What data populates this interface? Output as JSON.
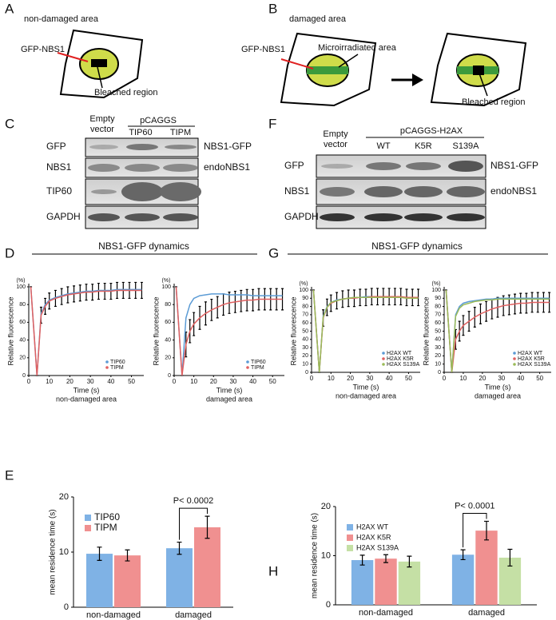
{
  "panels": {
    "A": {
      "label": "A",
      "title": "non-damaged area",
      "gfp": "GFP-NBS1",
      "bleached": "Bleached region"
    },
    "B": {
      "label": "B",
      "title": "damaged area",
      "gfp": "GFP-NBS1",
      "micro": "Microirradiated area",
      "bleached": "Bleached region"
    },
    "C": {
      "label": "C",
      "empty": [
        "Empty",
        "vector"
      ],
      "construct": "pCAGGS",
      "lanes": [
        "TIP60",
        "TIPM"
      ],
      "rows": [
        "GFP",
        "NBS1",
        "TIP60",
        "GAPDH"
      ],
      "right": [
        "NBS1-GFP",
        "endoNBS1"
      ]
    },
    "F": {
      "label": "F",
      "empty": [
        "Empty",
        "vector"
      ],
      "construct": "pCAGGS-H2AX",
      "lanes": [
        "WT",
        "K5R",
        "S139A"
      ],
      "rows": [
        "GFP",
        "NBS1",
        "GAPDH"
      ],
      "right": [
        "NBS1-GFP",
        "endoNBS1"
      ]
    },
    "D": {
      "label": "D",
      "title": "NBS1-GFP dynamics"
    },
    "G": {
      "label": "G",
      "title": "NBS1-GFP dynamics"
    },
    "E": {
      "label": "E"
    },
    "H": {
      "label": "H"
    }
  },
  "chart_data": [
    {
      "type": "line",
      "xlabel": "Time (s)",
      "ylabel": "Relative fluorescence",
      "y_unit": "(%)",
      "subtitle": "non-damaged area",
      "x": [
        1,
        4,
        6,
        8,
        10,
        13,
        16,
        19,
        22,
        25,
        28,
        31,
        34,
        37,
        40,
        43,
        46,
        49,
        52,
        55
      ],
      "series": [
        {
          "name": "TIP60",
          "color": "#5b9bd5",
          "values": [
            100,
            0,
            70,
            80,
            85,
            88,
            90,
            92,
            93,
            94,
            95,
            95,
            96,
            96,
            96,
            97,
            97,
            97,
            97,
            97
          ]
        },
        {
          "name": "TIPM",
          "color": "#e06060",
          "values": [
            100,
            0,
            68,
            78,
            84,
            87,
            89,
            91,
            92,
            93,
            94,
            94,
            95,
            95,
            95,
            96,
            96,
            96,
            96,
            96
          ],
          "errors": [
            0,
            0,
            9,
            9,
            9,
            9,
            9,
            9,
            9,
            9,
            9,
            9,
            9,
            9,
            9,
            9,
            9,
            9,
            9,
            9
          ]
        }
      ],
      "xlim": [
        0,
        56
      ],
      "ylim": [
        0,
        100
      ],
      "xticks": [
        0,
        10,
        20,
        30,
        40,
        50
      ],
      "yticks": [
        0,
        20,
        40,
        60,
        80,
        100
      ],
      "grid": false,
      "legend": "lower right"
    },
    {
      "type": "line",
      "xlabel": "Time (s)",
      "ylabel": "Relative fluorescence",
      "y_unit": "(%)",
      "subtitle": "damaged area",
      "x": [
        1,
        4,
        6,
        8,
        10,
        13,
        16,
        19,
        22,
        25,
        28,
        31,
        34,
        37,
        40,
        43,
        46,
        49,
        52,
        55
      ],
      "series": [
        {
          "name": "TIP60",
          "color": "#5b9bd5",
          "values": [
            100,
            0,
            65,
            80,
            87,
            90,
            91,
            92,
            92,
            92,
            91,
            91,
            91,
            91,
            90,
            90,
            90,
            90,
            90,
            90
          ]
        },
        {
          "name": "TIPM",
          "color": "#e06060",
          "values": [
            100,
            0,
            35,
            50,
            58,
            65,
            70,
            74,
            77,
            80,
            82,
            83,
            84,
            85,
            85,
            86,
            86,
            86,
            86,
            86
          ],
          "errors": [
            0,
            0,
            14,
            13,
            13,
            13,
            13,
            12,
            12,
            12,
            12,
            12,
            12,
            12,
            12,
            12,
            12,
            12,
            12,
            12
          ]
        }
      ],
      "xlim": [
        0,
        56
      ],
      "ylim": [
        0,
        100
      ],
      "xticks": [
        0,
        10,
        20,
        30,
        40,
        50
      ],
      "yticks": [
        0,
        20,
        40,
        60,
        80,
        100
      ],
      "grid": false,
      "legend": "lower right"
    },
    {
      "type": "line",
      "xlabel": "Time (s)",
      "ylabel": "Relative fluorescence",
      "y_unit": "(%)",
      "subtitle": "non-damaged area",
      "x": [
        1,
        4,
        6,
        8,
        10,
        13,
        16,
        19,
        22,
        25,
        28,
        31,
        34,
        37,
        40,
        43,
        46,
        49,
        52,
        55
      ],
      "series": [
        {
          "name": "H2AX WT",
          "color": "#5b9bd5",
          "values": [
            100,
            0,
            68,
            80,
            85,
            88,
            89,
            90,
            91,
            91,
            92,
            92,
            92,
            92,
            92,
            92,
            91,
            91,
            91,
            91
          ]
        },
        {
          "name": "H2AX K5R",
          "color": "#e06060",
          "values": [
            100,
            0,
            66,
            79,
            84,
            87,
            89,
            90,
            90,
            91,
            91,
            92,
            92,
            92,
            92,
            92,
            92,
            91,
            91,
            91
          ],
          "errors": [
            0,
            0,
            10,
            10,
            10,
            10,
            10,
            10,
            10,
            10,
            10,
            10,
            10,
            10,
            10,
            10,
            10,
            10,
            10,
            10
          ]
        },
        {
          "name": "H2AX S139A",
          "color": "#9bbb59",
          "values": [
            100,
            0,
            67,
            79,
            85,
            87,
            89,
            90,
            91,
            91,
            91,
            91,
            91,
            91,
            91,
            91,
            91,
            90,
            90,
            90
          ]
        }
      ],
      "xlim": [
        0,
        56
      ],
      "ylim": [
        0,
        100
      ],
      "xticks": [
        0,
        10,
        20,
        30,
        40,
        50
      ],
      "yticks": [
        0,
        10,
        20,
        30,
        40,
        50,
        60,
        70,
        80,
        90,
        100
      ],
      "grid": false,
      "legend": "lower right"
    },
    {
      "type": "line",
      "xlabel": "Time (s)",
      "ylabel": "Relative fluorescence",
      "y_unit": "(%)",
      "subtitle": "damaged area",
      "x": [
        1,
        4,
        6,
        8,
        10,
        13,
        16,
        19,
        22,
        25,
        28,
        31,
        34,
        37,
        40,
        43,
        46,
        49,
        52,
        55
      ],
      "series": [
        {
          "name": "H2AX WT",
          "color": "#5b9bd5",
          "values": [
            100,
            0,
            70,
            80,
            84,
            86,
            87,
            88,
            89,
            89,
            90,
            90,
            90,
            90,
            90,
            90,
            90,
            90,
            90,
            90
          ]
        },
        {
          "name": "H2AX K5R",
          "color": "#e06060",
          "values": [
            100,
            0,
            40,
            50,
            57,
            62,
            67,
            71,
            74,
            77,
            79,
            81,
            82,
            83,
            84,
            84,
            85,
            85,
            85,
            85
          ],
          "errors": [
            0,
            0,
            12,
            12,
            12,
            12,
            12,
            12,
            12,
            12,
            12,
            12,
            12,
            12,
            12,
            12,
            12,
            12,
            12,
            12
          ]
        },
        {
          "name": "H2AX S139A",
          "color": "#9bbb59",
          "values": [
            100,
            0,
            68,
            78,
            82,
            84,
            86,
            87,
            88,
            88,
            89,
            89,
            89,
            89,
            89,
            89,
            89,
            89,
            89,
            89
          ]
        }
      ],
      "xlim": [
        0,
        56
      ],
      "ylim": [
        0,
        100
      ],
      "xticks": [
        0,
        10,
        20,
        30,
        40,
        50
      ],
      "yticks": [
        0,
        10,
        20,
        30,
        40,
        50,
        60,
        70,
        80,
        90,
        100
      ],
      "grid": false,
      "legend": "lower right"
    },
    {
      "type": "bar",
      "ylabel": "mean residence time (s)",
      "annotation": "P< 0.0002",
      "categories": [
        "non-damaged",
        "damaged"
      ],
      "series": [
        {
          "name": "TIP60",
          "color": "#7fb2e5",
          "values": [
            9.7,
            10.7
          ],
          "errors": [
            1.2,
            1.1
          ]
        },
        {
          "name": "TIPM",
          "color": "#f09090",
          "values": [
            9.4,
            14.5
          ],
          "errors": [
            1.0,
            2.0
          ]
        }
      ],
      "ylim": [
        0,
        20
      ],
      "yticks": [
        0,
        10,
        20
      ],
      "grid": false,
      "legend": "upper left"
    },
    {
      "type": "bar",
      "ylabel": "mean residence time (s)",
      "annotation": "P< 0.0001",
      "categories": [
        "non-damaged",
        "damaged"
      ],
      "series": [
        {
          "name": "H2AX WT",
          "color": "#7fb2e5",
          "values": [
            9.1,
            10.2
          ],
          "errors": [
            1.0,
            1.0
          ]
        },
        {
          "name": "H2AX K5R",
          "color": "#f09090",
          "values": [
            9.4,
            15.1
          ],
          "errors": [
            0.8,
            1.9
          ]
        },
        {
          "name": "H2AX S139A",
          "color": "#c5e0a5",
          "values": [
            8.8,
            9.6
          ],
          "errors": [
            1.1,
            1.7
          ]
        }
      ],
      "ylim": [
        0,
        20
      ],
      "yticks": [
        0,
        10,
        20
      ],
      "grid": false,
      "legend": "upper left"
    }
  ]
}
